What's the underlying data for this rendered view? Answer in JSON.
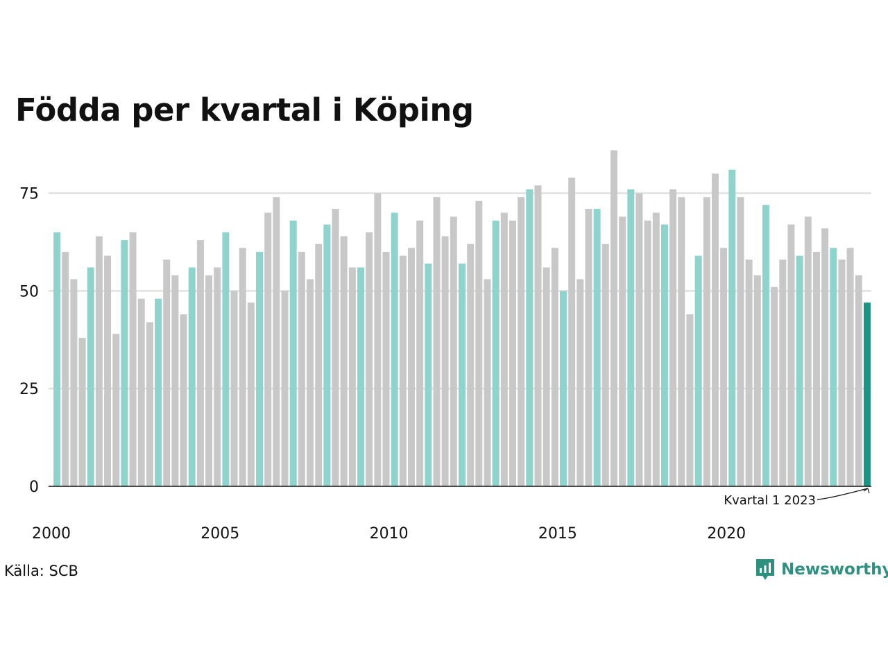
{
  "title": "Födda per kvartal i Köping",
  "source": "Källa: SCB",
  "brand": {
    "name": "Newsworthy",
    "icon": "newsworthy-logo-icon"
  },
  "colors": {
    "q1": "#8ed4cd",
    "other": "#c8c8c8",
    "latest": "#1a9484",
    "grid": "#e0e0e0",
    "axis": "#111111",
    "brand": "#2e9180"
  },
  "chart_data": {
    "type": "bar",
    "title": "Födda per kvartal i Köping",
    "xlabel": "",
    "ylabel": "",
    "ylim": [
      0,
      90
    ],
    "yticks": [
      0,
      25,
      50,
      75
    ],
    "xtick_labels": [
      "2000",
      "2005",
      "2010",
      "2015",
      "2020"
    ],
    "grid": true,
    "start_year": 2000,
    "values": [
      65,
      60,
      53,
      38,
      56,
      64,
      59,
      39,
      63,
      65,
      48,
      42,
      48,
      58,
      54,
      44,
      56,
      63,
      54,
      56,
      65,
      50,
      61,
      47,
      60,
      70,
      74,
      50,
      68,
      60,
      53,
      62,
      67,
      71,
      64,
      56,
      56,
      65,
      75,
      60,
      70,
      59,
      61,
      68,
      57,
      74,
      64,
      69,
      57,
      62,
      73,
      53,
      68,
      70,
      68,
      74,
      76,
      77,
      56,
      61,
      50,
      79,
      53,
      71,
      71,
      62,
      86,
      69,
      76,
      75,
      68,
      70,
      67,
      76,
      74,
      44,
      59,
      74,
      80,
      61,
      81,
      74,
      58,
      54,
      72,
      51,
      58,
      67,
      59,
      69,
      60,
      66,
      61,
      58,
      61,
      54,
      47
    ],
    "annotation": {
      "text": "Kvartal 1 2023",
      "target_index": 96
    }
  }
}
